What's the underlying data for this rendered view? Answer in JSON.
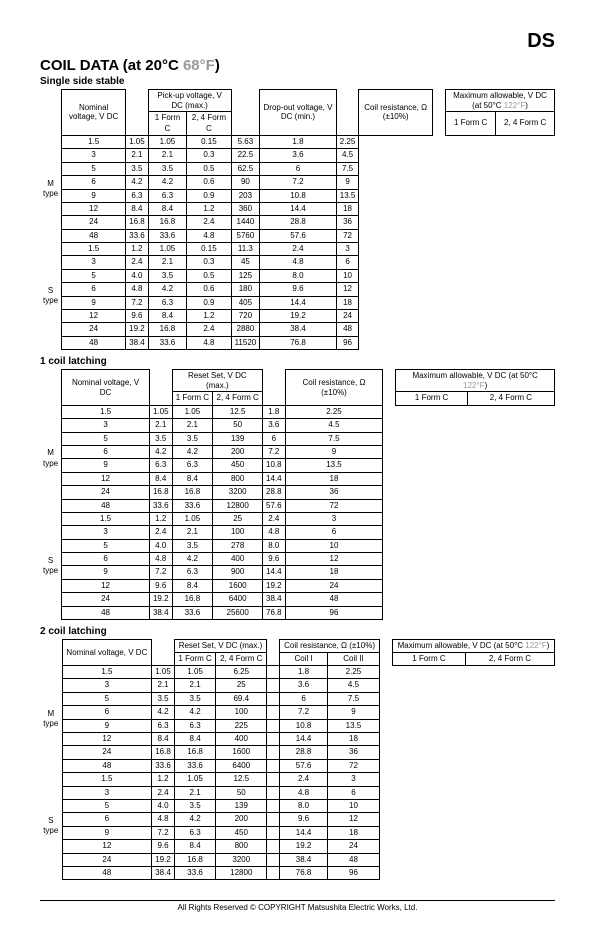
{
  "header_ds": "DS",
  "main_title": "COIL DATA (at 20°C ",
  "main_title_gray": "68°F",
  "main_title_close": ")",
  "single_side": {
    "title": "Single side stable",
    "h_nominal": "Nominal voltage, V DC",
    "h_pickup": "Pick-up voltage, V DC (max.)",
    "h_dropout": "Drop-out voltage, V DC (min.)",
    "h_coilr": "Coil resistance, Ω (±10%)",
    "h_max": "Maximum allowable, V DC (at 50°C ",
    "h_max_gray": "122°F",
    "h_max_close": ")",
    "h_1fc": "1 Form C",
    "h_24fc": "2, 4 Form C",
    "m_label": "M type",
    "s_label": "S type",
    "rows": [
      [
        "1.5",
        "1.05",
        "1.05",
        "0.15",
        "5.63",
        "1.8",
        "2.25"
      ],
      [
        "3",
        "2.1",
        "2.1",
        "0.3",
        "22.5",
        "3.6",
        "4.5"
      ],
      [
        "5",
        "3.5",
        "3.5",
        "0.5",
        "62.5",
        "6",
        "7.5"
      ],
      [
        "6",
        "4.2",
        "4.2",
        "0.6",
        "90",
        "7.2",
        "9"
      ],
      [
        "9",
        "6.3",
        "6.3",
        "0.9",
        "203",
        "10.8",
        "13.5"
      ],
      [
        "12",
        "8.4",
        "8.4",
        "1.2",
        "360",
        "14.4",
        "18"
      ],
      [
        "24",
        "16.8",
        "16.8",
        "2.4",
        "1440",
        "28.8",
        "36"
      ],
      [
        "48",
        "33.6",
        "33.6",
        "4.8",
        "5760",
        "57.6",
        "72"
      ],
      [
        "1.5",
        "1.2",
        "1.05",
        "0.15",
        "11.3",
        "2.4",
        "3"
      ],
      [
        "3",
        "2.4",
        "2.1",
        "0.3",
        "45",
        "4.8",
        "6"
      ],
      [
        "5",
        "4.0",
        "3.5",
        "0.5",
        "125",
        "8.0",
        "10"
      ],
      [
        "6",
        "4.8",
        "4.2",
        "0.6",
        "180",
        "9.6",
        "12"
      ],
      [
        "9",
        "7.2",
        "6.3",
        "0.9",
        "405",
        "14.4",
        "18"
      ],
      [
        "12",
        "9.6",
        "8.4",
        "1.2",
        "720",
        "19.2",
        "24"
      ],
      [
        "24",
        "19.2",
        "16.8",
        "2.4",
        "2880",
        "38.4",
        "48"
      ],
      [
        "48",
        "38.4",
        "33.6",
        "4.8",
        "11520",
        "76.8",
        "96"
      ]
    ]
  },
  "one_coil": {
    "title": "1 coil latching",
    "h_nominal": "Nominal voltage, V DC",
    "h_reset": "Reset Set, V DC (max.)",
    "h_coilr": "Coil resistance, Ω (±10%)",
    "h_max": "Maximum allowable, V DC (at 50°C ",
    "h_max_gray": "122°F",
    "h_max_close": ")",
    "h_1fc": "1 Form C",
    "h_24fc": "2, 4 Form C",
    "m_label": "M type",
    "s_label": "S type",
    "rows": [
      [
        "1.5",
        "1.05",
        "1.05",
        "12.5",
        "1.8",
        "2.25"
      ],
      [
        "3",
        "2.1",
        "2.1",
        "50",
        "3.6",
        "4.5"
      ],
      [
        "5",
        "3.5",
        "3.5",
        "139",
        "6",
        "7.5"
      ],
      [
        "6",
        "4.2",
        "4.2",
        "200",
        "7.2",
        "9"
      ],
      [
        "9",
        "6.3",
        "6.3",
        "450",
        "10.8",
        "13.5"
      ],
      [
        "12",
        "8.4",
        "8.4",
        "800",
        "14.4",
        "18"
      ],
      [
        "24",
        "16.8",
        "16.8",
        "3200",
        "28.8",
        "36"
      ],
      [
        "48",
        "33.6",
        "33.6",
        "12800",
        "57.6",
        "72"
      ],
      [
        "1.5",
        "1.2",
        "1.05",
        "25",
        "2.4",
        "3"
      ],
      [
        "3",
        "2.4",
        "2.1",
        "100",
        "4.8",
        "6"
      ],
      [
        "5",
        "4.0",
        "3.5",
        "278",
        "8.0",
        "10"
      ],
      [
        "6",
        "4.8",
        "4.2",
        "400",
        "9.6",
        "12"
      ],
      [
        "9",
        "7.2",
        "6.3",
        "900",
        "14.4",
        "18"
      ],
      [
        "12",
        "9.6",
        "8.4",
        "1600",
        "19.2",
        "24"
      ],
      [
        "24",
        "19.2",
        "16.8",
        "6400",
        "38.4",
        "48"
      ],
      [
        "48",
        "38.4",
        "33.6",
        "25600",
        "76.8",
        "96"
      ]
    ]
  },
  "two_coil": {
    "title": "2 coil latching",
    "h_nominal": "Nominal voltage, V DC",
    "h_reset": "Reset Set, V DC (max.)",
    "h_coilr": "Coil resistance, Ω (±10%)",
    "h_max": "Maximum allowable, V DC (at 50°C ",
    "h_max_gray": "122°F",
    "h_max_close": ")",
    "h_1fc": "1 Form C",
    "h_24fc": "2, 4 Form C",
    "h_coil1": "Coil I",
    "h_coil2": "Coil II",
    "m_label": "M type",
    "s_label": "S type",
    "rows": [
      [
        "1.5",
        "1.05",
        "1.05",
        "6.25",
        "",
        "1.8",
        "2.25"
      ],
      [
        "3",
        "2.1",
        "2.1",
        "25",
        "",
        "3.6",
        "4.5"
      ],
      [
        "5",
        "3.5",
        "3.5",
        "69.4",
        "",
        "6",
        "7.5"
      ],
      [
        "6",
        "4.2",
        "4.2",
        "100",
        "",
        "7.2",
        "9"
      ],
      [
        "9",
        "6.3",
        "6.3",
        "225",
        "",
        "10.8",
        "13.5"
      ],
      [
        "12",
        "8.4",
        "8.4",
        "400",
        "",
        "14.4",
        "18"
      ],
      [
        "24",
        "16.8",
        "16.8",
        "1600",
        "",
        "28.8",
        "36"
      ],
      [
        "48",
        "33.6",
        "33.6",
        "6400",
        "",
        "57.6",
        "72"
      ],
      [
        "1.5",
        "1.2",
        "1.05",
        "12.5",
        "",
        "2.4",
        "3"
      ],
      [
        "3",
        "2.4",
        "2.1",
        "50",
        "",
        "4.8",
        "6"
      ],
      [
        "5",
        "4.0",
        "3.5",
        "139",
        "",
        "8.0",
        "10"
      ],
      [
        "6",
        "4.8",
        "4.2",
        "200",
        "",
        "9.6",
        "12"
      ],
      [
        "9",
        "7.2",
        "6.3",
        "450",
        "",
        "14.4",
        "18"
      ],
      [
        "12",
        "9.6",
        "8.4",
        "800",
        "",
        "19.2",
        "24"
      ],
      [
        "24",
        "19.2",
        "16.8",
        "3200",
        "",
        "38.4",
        "48"
      ],
      [
        "48",
        "38.4",
        "33.6",
        "12800",
        "",
        "76.8",
        "96"
      ]
    ]
  },
  "footer": "All Rights Reserved © COPYRIGHT Matsushita Electric Works, Ltd."
}
